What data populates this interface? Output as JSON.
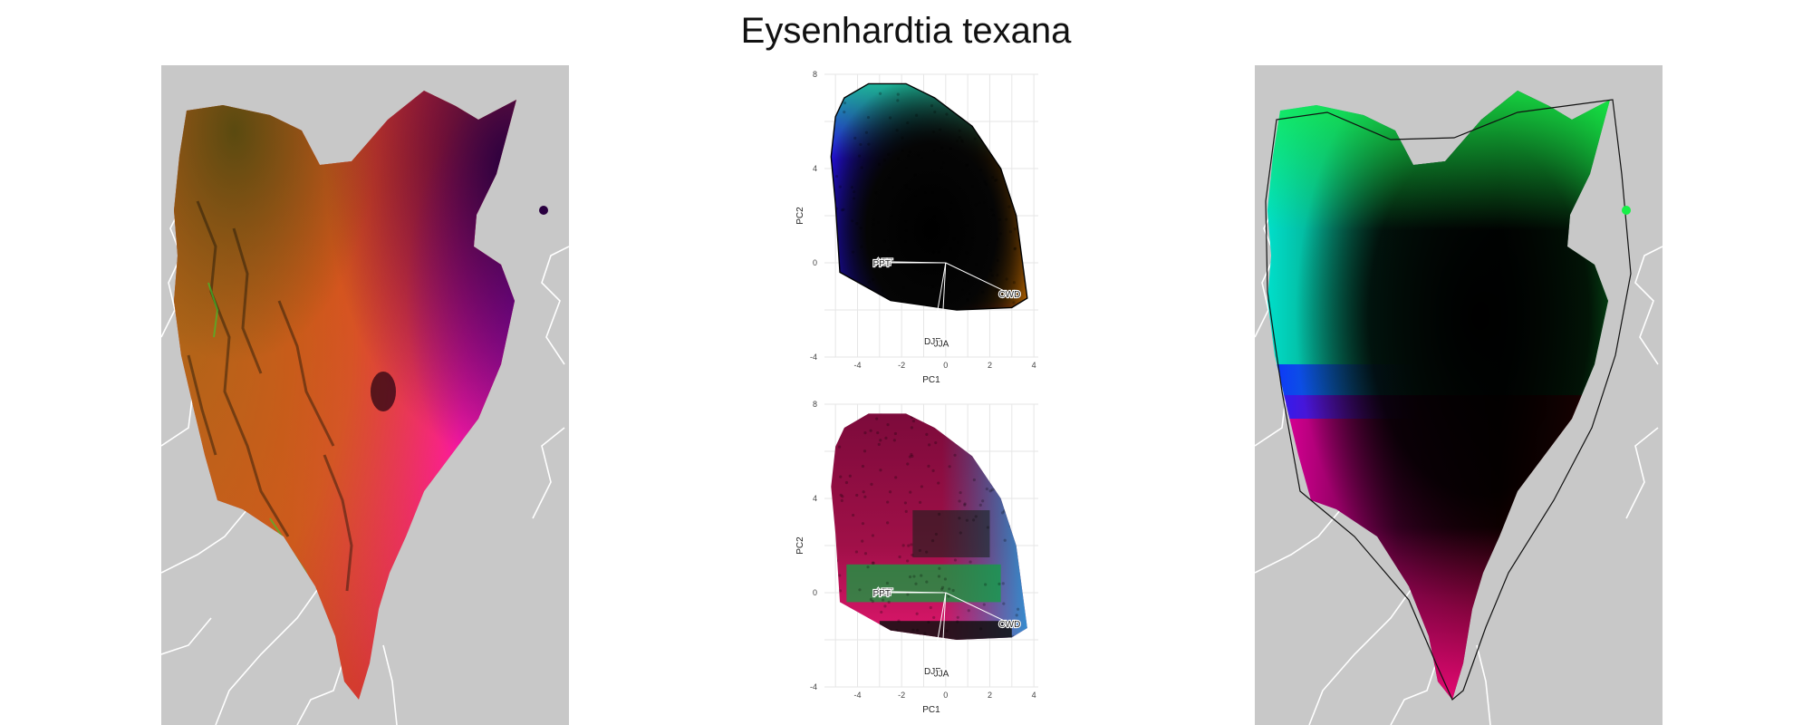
{
  "title": "Eysenhardtia texana",
  "colors": {
    "map_background": "#c8c8c8",
    "border_lines": "#ffffff",
    "plot_background": "#ffffff",
    "gridlines": "#e6e6e6"
  },
  "left_map": {
    "description_name": "climate-color-map",
    "palette": [
      "#c2661a",
      "#ff1a1a",
      "#ff1a9c",
      "#7a00b3",
      "#2a003d",
      "#1faa1f"
    ]
  },
  "right_map": {
    "description_name": "legend-color-map",
    "palette": [
      "#12f04a",
      "#00e0d0",
      "#1e32ff",
      "#ff0090",
      "#ff1a1a",
      "#000000"
    ]
  },
  "chart_data": [
    {
      "type": "scatter",
      "name": "pca-colored-by-pc",
      "xlabel": "PC1",
      "ylabel": "PC2",
      "xlim": [
        -5.5,
        4.2
      ],
      "ylim": [
        -4,
        8
      ],
      "x_ticks": [
        -4,
        -2,
        0,
        2,
        4
      ],
      "y_ticks": [
        -4,
        0,
        4,
        8
      ],
      "grid": true,
      "hull": [
        [
          -4.6,
          7.0
        ],
        [
          -3.5,
          7.6
        ],
        [
          -1.8,
          7.6
        ],
        [
          -0.5,
          7.0
        ],
        [
          1.2,
          5.8
        ],
        [
          2.5,
          4.0
        ],
        [
          3.2,
          2.0
        ],
        [
          3.7,
          -1.5
        ],
        [
          3.0,
          -1.9
        ],
        [
          0.5,
          -2.0
        ],
        [
          -2.5,
          -1.6
        ],
        [
          -4.8,
          -0.4
        ],
        [
          -5.0,
          2.5
        ],
        [
          -5.2,
          4.5
        ],
        [
          -5.0,
          6.2
        ]
      ],
      "loadings": [
        {
          "label": "AET",
          "x": -2.8,
          "y": 0.05
        },
        {
          "label": "PPT",
          "x": -2.9,
          "y": 0.0
        },
        {
          "label": "CWD",
          "x": 2.9,
          "y": -1.3
        },
        {
          "label": "DJF",
          "x": -0.6,
          "y": -3.3
        },
        {
          "label": "JJA",
          "x": -0.2,
          "y": -3.4
        }
      ]
    },
    {
      "type": "scatter",
      "name": "pca-colored-by-cluster",
      "xlabel": "PC1",
      "ylabel": "PC2",
      "xlim": [
        -5.5,
        4.2
      ],
      "ylim": [
        -4,
        8
      ],
      "x_ticks": [
        -4,
        -2,
        0,
        2,
        4
      ],
      "y_ticks": [
        -4,
        0,
        4,
        8
      ],
      "grid": true,
      "loadings": [
        {
          "label": "AET",
          "x": -2.8,
          "y": 0.05
        },
        {
          "label": "PPT",
          "x": -2.9,
          "y": 0.0
        },
        {
          "label": "CWD",
          "x": 2.9,
          "y": -1.3
        },
        {
          "label": "DJF",
          "x": -0.6,
          "y": -3.3
        },
        {
          "label": "JJA",
          "x": -0.2,
          "y": -3.4
        }
      ]
    }
  ]
}
